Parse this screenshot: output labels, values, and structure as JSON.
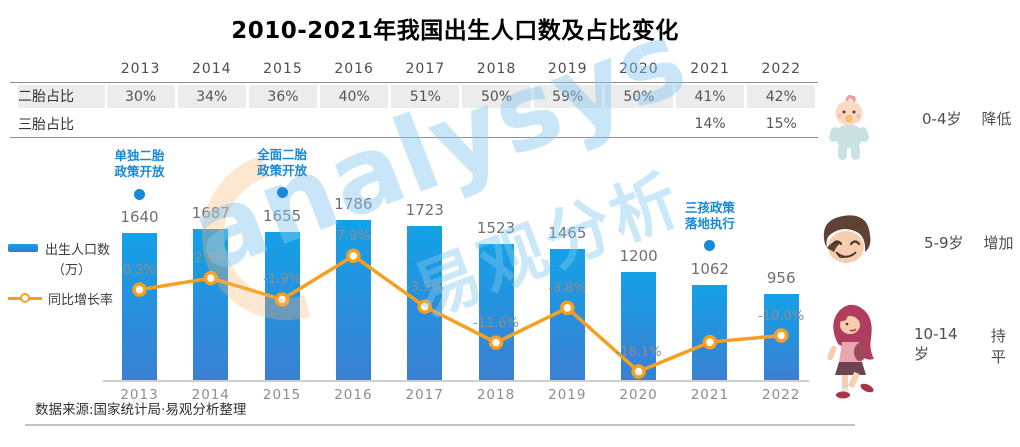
{
  "title": "2010-2021年我国出生人口数及占比变化",
  "table": {
    "years": [
      "2013",
      "2014",
      "2015",
      "2016",
      "2017",
      "2018",
      "2019",
      "2020",
      "2021",
      "2022"
    ],
    "rows": [
      {
        "label": "二胎占比",
        "values": [
          "30%",
          "34%",
          "36%",
          "40%",
          "51%",
          "50%",
          "59%",
          "50%",
          "41%",
          "42%"
        ]
      },
      {
        "label": "三胎占比",
        "values": [
          "",
          "",
          "",
          "",
          "",
          "",
          "",
          "",
          "14%",
          "15%"
        ]
      }
    ]
  },
  "chart_data": {
    "type": "bar",
    "categories": [
      "2013",
      "2014",
      "2015",
      "2016",
      "2017",
      "2018",
      "2019",
      "2020",
      "2021",
      "2022"
    ],
    "series": [
      {
        "name": "出生人口数（万）",
        "type": "bar",
        "values": [
          1640,
          1687,
          1655,
          1786,
          1723,
          1523,
          1465,
          1200,
          1062,
          956
        ],
        "labels": [
          "1640",
          "1687",
          "1655",
          "1786",
          "1723",
          "1523",
          "1465",
          "1200",
          "1062",
          "956"
        ]
      },
      {
        "name": "同比增长率",
        "type": "line",
        "values": [
          0.3,
          2.9,
          -1.9,
          7.9,
          -3.5,
          -11.6,
          -3.8,
          -18.1,
          -11.5,
          -10.0
        ],
        "labels": [
          "0.3%",
          "2.9%",
          "-1.9%",
          "7.9%",
          "-3.5%",
          "-11.6%",
          "-3.8%",
          "-18.1%",
          "",
          "-10.0%"
        ]
      }
    ],
    "annotations": [
      {
        "year": "2013",
        "line1": "单独二胎",
        "line2": "政策开放"
      },
      {
        "year": "2015",
        "line1": "全面二胎",
        "line2": "政策开放"
      },
      {
        "year": "2021",
        "line1": "三孩政策",
        "line2": "落地执行"
      }
    ],
    "ylim_bar": [
      0,
      1900
    ],
    "grid": false,
    "legend_position": "left",
    "colors": {
      "bar_top": "#14a1e7",
      "bar_bottom": "#3a80d3",
      "line": "#f79f1f",
      "annotation": "#1789d6",
      "value_label": "#6f6f6f",
      "axis": "#cfcfcf"
    }
  },
  "legend": {
    "bar_label_line1": "出生人口数",
    "bar_label_line2": "（万）",
    "line_label": "同比增长率"
  },
  "side_panel": {
    "items": [
      {
        "icon": "baby-icon",
        "age": "0-4岁",
        "trend": "降低"
      },
      {
        "icon": "boy-icon",
        "age": "5-9岁",
        "trend": "增加"
      },
      {
        "icon": "girl-icon",
        "age": "10-14岁",
        "trend": "持平"
      }
    ]
  },
  "watermark": {
    "text_en": "analysys",
    "text_cn": "易观分析"
  },
  "footer": {
    "source": "数据来源:国家统计局·易观分析整理"
  }
}
